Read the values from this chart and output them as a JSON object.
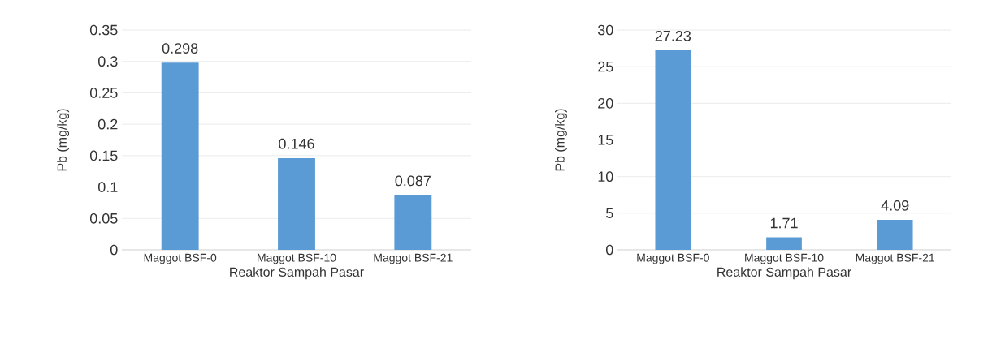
{
  "chart_data": [
    {
      "type": "bar",
      "categories": [
        "Maggot BSF-0",
        "Maggot BSF-10",
        "Maggot BSF-21"
      ],
      "values": [
        0.298,
        0.146,
        0.087
      ],
      "color": "#5b9bd5",
      "xlabel": "Reaktor Sampah Pasar",
      "ylabel": "Pb (mg/kg)",
      "ylim": [
        0,
        0.35
      ],
      "yticks": [
        0,
        0.05,
        0.1,
        0.15,
        0.2,
        0.25,
        0.3,
        0.35
      ],
      "grid": "y",
      "data_labels": true
    },
    {
      "type": "bar",
      "categories": [
        "Maggot BSF-0",
        "Maggot BSF-10",
        "Maggot BSF-21"
      ],
      "values": [
        27.23,
        1.71,
        4.09
      ],
      "color": "#5b9bd5",
      "xlabel": "Reaktor Sampah Pasar",
      "ylabel": "Pb (mg/kg)",
      "ylim": [
        0,
        30
      ],
      "yticks": [
        0,
        5,
        10,
        15,
        20,
        25,
        30
      ],
      "grid": "y",
      "data_labels": true
    }
  ]
}
